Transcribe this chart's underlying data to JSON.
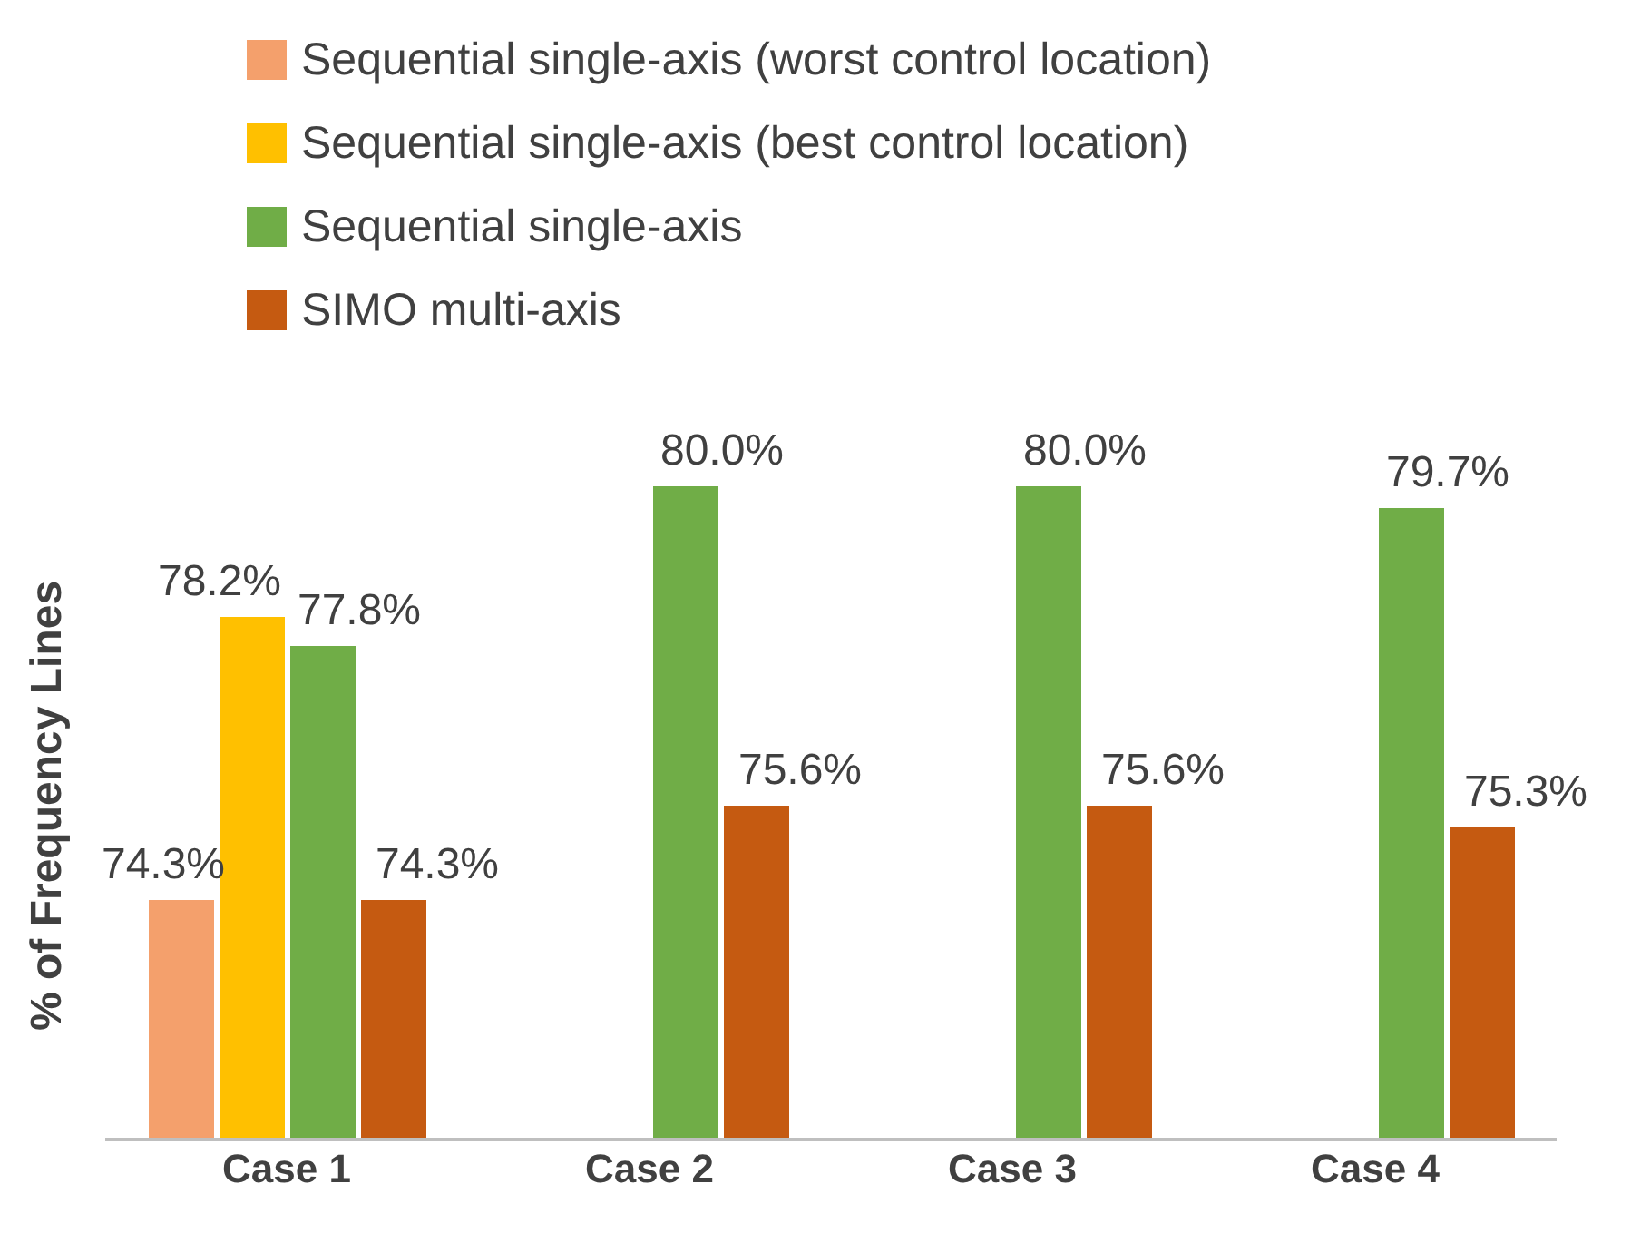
{
  "chart_data": {
    "type": "bar",
    "ylabel": "% of Frequency Lines",
    "categories": [
      "Case 1",
      "Case 2",
      "Case 3",
      "Case 4"
    ],
    "ylim": [
      71,
      80
    ],
    "tick_labels": "x",
    "legend": "top",
    "grid": false,
    "series": [
      {
        "name": "Sequential single-axis (worst control location)",
        "color": "#f4a06c",
        "values": [
          74.3,
          null,
          null,
          null
        ],
        "value_labels": [
          "74.3%",
          null,
          null,
          null
        ]
      },
      {
        "name": "Sequential single-axis (best control location)",
        "color": "#ffc000",
        "values": [
          78.2,
          null,
          null,
          null
        ],
        "value_labels": [
          "78.2%",
          null,
          null,
          null
        ]
      },
      {
        "name": "Sequential single-axis",
        "color": "#70ad47",
        "values": [
          77.8,
          80.0,
          80.0,
          79.7
        ],
        "value_labels": [
          "77.8%",
          "80.0%",
          "80.0%",
          "79.7%"
        ]
      },
      {
        "name": "SIMO multi-axis",
        "color": "#c55a11",
        "values": [
          74.3,
          75.6,
          75.6,
          75.3
        ],
        "value_labels": [
          "74.3%",
          "75.6%",
          "75.6%",
          "75.3%"
        ]
      }
    ]
  }
}
